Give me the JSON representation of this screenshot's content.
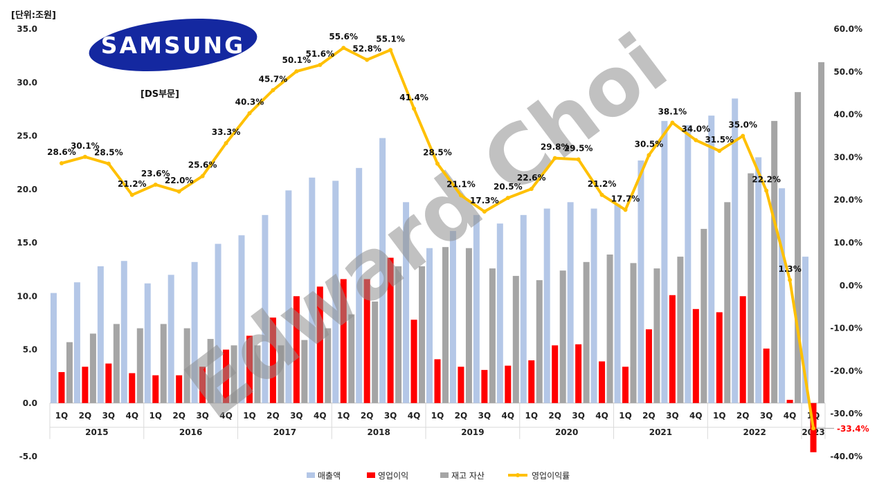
{
  "unit_label": "[단위:조원]",
  "segment_label": "[DS부문]",
  "logo_text": "SAMSUNG",
  "watermark": "Edward Choi",
  "colors": {
    "revenue": "#b4c7e7",
    "operating_profit": "#ff0000",
    "inventory": "#a5a5a5",
    "margin": "#ffc000",
    "logo_blue": "#1428a0",
    "negative_label": "#ff0000"
  },
  "chart_data": {
    "type": "bar+line",
    "title": "",
    "y_left": {
      "min": -5,
      "max": 35,
      "step": 5,
      "ticks": [
        "-5.0",
        "0.0",
        "5.0",
        "10.0",
        "15.0",
        "20.0",
        "25.0",
        "30.0",
        "35.0"
      ]
    },
    "y_right": {
      "min": -40,
      "max": 60,
      "step": 10,
      "ticks": [
        "-40.0%",
        "-30.0%",
        "-20.0%",
        "-10.0%",
        "0.0%",
        "10.0%",
        "20.0%",
        "30.0%",
        "40.0%",
        "50.0%",
        "60.0%"
      ]
    },
    "quarters": [
      "1Q",
      "2Q",
      "3Q",
      "4Q",
      "1Q",
      "2Q",
      "3Q",
      "4Q",
      "1Q",
      "2Q",
      "3Q",
      "4Q",
      "1Q",
      "2Q",
      "3Q",
      "4Q",
      "1Q",
      "2Q",
      "3Q",
      "4Q",
      "1Q",
      "2Q",
      "3Q",
      "4Q",
      "1Q",
      "2Q",
      "3Q",
      "4Q",
      "1Q",
      "2Q",
      "3Q",
      "4Q",
      "1Q"
    ],
    "years": [
      "2015",
      "2016",
      "2017",
      "2018",
      "2019",
      "2020",
      "2021",
      "2022",
      "2023"
    ],
    "series": [
      {
        "name": "매출액",
        "type": "bar",
        "axis": "left",
        "values": [
          10.3,
          11.3,
          12.8,
          13.3,
          11.2,
          12.0,
          13.2,
          14.9,
          15.7,
          17.6,
          19.9,
          21.1,
          20.8,
          22.0,
          24.8,
          18.8,
          14.5,
          16.1,
          17.6,
          16.8,
          17.6,
          18.2,
          18.8,
          18.2,
          18.6,
          22.7,
          26.4,
          26.0,
          26.9,
          28.5,
          23.0,
          20.1,
          13.7
        ]
      },
      {
        "name": "영업이익",
        "type": "bar",
        "axis": "left",
        "values": [
          2.9,
          3.4,
          3.7,
          2.8,
          2.6,
          2.6,
          3.4,
          5.0,
          6.3,
          8.0,
          10.0,
          10.9,
          11.6,
          11.6,
          13.6,
          7.8,
          4.1,
          3.4,
          3.1,
          3.5,
          4.0,
          5.4,
          5.5,
          3.9,
          3.4,
          6.9,
          10.1,
          8.8,
          8.5,
          10.0,
          5.1,
          0.3,
          -4.6
        ]
      },
      {
        "name": "재고 자산",
        "type": "bar",
        "axis": "left",
        "values": [
          5.7,
          6.5,
          7.4,
          7.0,
          7.4,
          7.0,
          6.0,
          5.4,
          5.4,
          5.4,
          5.9,
          7.0,
          8.3,
          9.5,
          12.8,
          12.8,
          14.6,
          14.5,
          12.6,
          11.9,
          11.5,
          12.4,
          13.2,
          13.9,
          13.1,
          12.6,
          13.7,
          16.3,
          18.8,
          21.5,
          26.4,
          29.1,
          31.9
        ]
      },
      {
        "name": "영업이익률",
        "type": "line",
        "axis": "right",
        "values": [
          28.6,
          30.1,
          28.5,
          21.2,
          23.6,
          22.0,
          25.6,
          33.3,
          40.3,
          45.7,
          50.1,
          51.6,
          55.6,
          52.8,
          55.1,
          41.4,
          28.5,
          21.1,
          17.3,
          20.5,
          22.6,
          29.8,
          29.5,
          21.2,
          17.7,
          30.5,
          38.1,
          34.0,
          31.5,
          35.0,
          22.2,
          1.3,
          -33.4
        ],
        "labels": [
          "28.6%",
          "30.1%",
          "28.5%",
          "21.2%",
          "23.6%",
          "22.0%",
          "25.6%",
          "33.3%",
          "40.3%",
          "45.7%",
          "50.1%",
          "51.6%",
          "55.6%",
          "52.8%",
          "55.1%",
          "41.4%",
          "28.5%",
          "21.1%",
          "17.3%",
          "20.5%",
          "22.6%",
          "29.8%",
          "29.5%",
          "21.2%",
          "17.7%",
          "30.5%",
          "38.1%",
          "34.0%",
          "31.5%",
          "35.0%",
          "22.2%",
          "1.3%",
          "-33.4%"
        ]
      }
    ],
    "legend": [
      "매출액",
      "영업이익",
      "재고 자산",
      "영업이익률"
    ],
    "legend_position": "bottom"
  }
}
